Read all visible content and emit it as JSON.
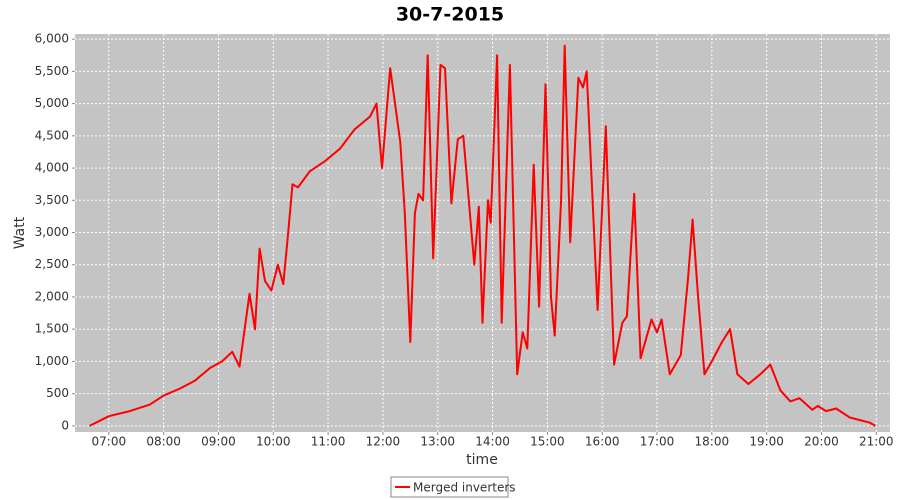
{
  "chart_data": {
    "type": "line",
    "title": "30-7-2015",
    "x_label": "time",
    "y_label": "Watt",
    "x": [
      "06:39",
      "07:00",
      "07:23",
      "07:45",
      "08:00",
      "08:18",
      "08:34",
      "08:51",
      "09:04",
      "09:15",
      "09:23",
      "09:34",
      "09:40",
      "09:45",
      "09:51",
      "09:58",
      "10:05",
      "10:11",
      "10:16",
      "10:21",
      "10:27",
      "10:40",
      "10:56",
      "11:13",
      "11:29",
      "11:46",
      "11:53",
      "11:59",
      "12:08",
      "12:19",
      "12:24",
      "12:30",
      "12:35",
      "12:39",
      "12:44",
      "12:49",
      "12:55",
      "13:03",
      "13:08",
      "13:15",
      "13:22",
      "13:28",
      "13:40",
      "13:45",
      "13:49",
      "13:55",
      "13:58",
      "14:05",
      "14:10",
      "14:19",
      "14:27",
      "14:33",
      "14:38",
      "14:45",
      "14:51",
      "14:58",
      "15:04",
      "15:08",
      "15:15",
      "15:19",
      "15:25",
      "15:34",
      "15:39",
      "15:43",
      "15:55",
      "16:04",
      "16:13",
      "16:22",
      "16:27",
      "16:35",
      "16:42",
      "16:54",
      "17:00",
      "17:05",
      "17:14",
      "17:26",
      "17:34",
      "17:39",
      "17:45",
      "17:52",
      "18:00",
      "18:11",
      "18:20",
      "18:28",
      "18:40",
      "18:53",
      "19:04",
      "19:15",
      "19:26",
      "19:36",
      "19:50",
      "19:56",
      "20:05",
      "20:16",
      "20:31",
      "20:53",
      "20:59"
    ],
    "series": [
      {
        "name": "Merged inverters",
        "color": "#ff0000",
        "values": [
          0,
          150,
          230,
          330,
          470,
          580,
          700,
          900,
          1000,
          1150,
          920,
          2050,
          1500,
          2750,
          2250,
          2100,
          2500,
          2200,
          2950,
          3750,
          3700,
          3950,
          4100,
          4300,
          4600,
          4800,
          5000,
          4000,
          5550,
          4400,
          3300,
          1300,
          3300,
          3600,
          3500,
          5750,
          2600,
          5600,
          5550,
          3450,
          4450,
          4500,
          2500,
          3400,
          1600,
          3500,
          3150,
          5750,
          1600,
          5600,
          800,
          1450,
          1200,
          4050,
          1850,
          5300,
          2000,
          1400,
          3500,
          5900,
          2850,
          5400,
          5250,
          5500,
          1800,
          4650,
          950,
          1600,
          1700,
          3600,
          1050,
          1650,
          1450,
          1650,
          800,
          1100,
          2300,
          3200,
          2000,
          800,
          1000,
          1300,
          1500,
          800,
          650,
          800,
          950,
          550,
          380,
          430,
          250,
          310,
          230,
          270,
          130,
          50,
          0
        ]
      }
    ],
    "xlim": [
      "06:23",
      "21:15"
    ],
    "xticks": [
      "07:00",
      "08:00",
      "09:00",
      "10:00",
      "11:00",
      "12:00",
      "13:00",
      "14:00",
      "15:00",
      "16:00",
      "17:00",
      "18:00",
      "19:00",
      "20:00",
      "21:00"
    ],
    "ylim": [
      -95,
      6080
    ],
    "yticks": [
      0,
      500,
      {
        "value": 1000,
        "label": "1,000"
      },
      {
        "value": 1500,
        "label": "1,500"
      },
      {
        "value": 2000,
        "label": "2,000"
      },
      {
        "value": 2500,
        "label": "2,500"
      },
      {
        "value": 3000,
        "label": "3,000"
      },
      {
        "value": 3500,
        "label": "3,500"
      },
      {
        "value": 4000,
        "label": "4,000"
      },
      {
        "value": 4500,
        "label": "4,500"
      },
      {
        "value": 5000,
        "label": "5,000"
      },
      {
        "value": 5500,
        "label": "5,500"
      },
      {
        "value": 6000,
        "label": "6,000"
      }
    ],
    "grid": true
  }
}
